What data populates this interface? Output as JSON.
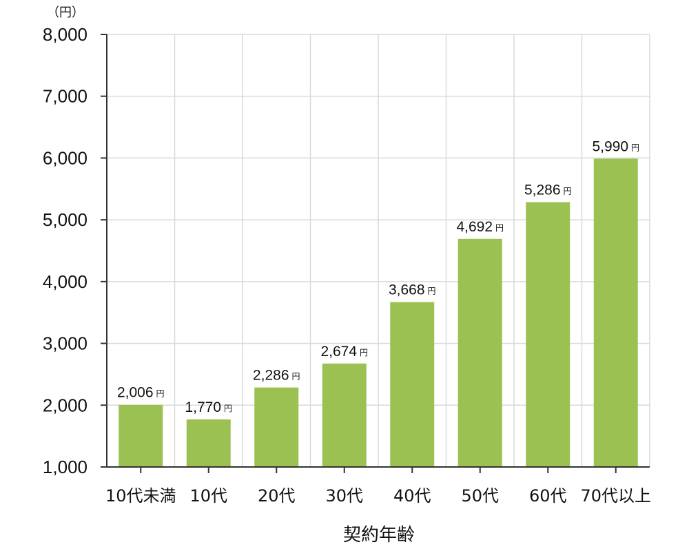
{
  "chart_data": {
    "type": "bar",
    "y_unit_label": "（円）",
    "xlabel": "契約年齢",
    "ylim": [
      1000,
      8000
    ],
    "y_ticks": [
      1000,
      2000,
      3000,
      4000,
      5000,
      6000,
      7000,
      8000
    ],
    "y_tick_labels": [
      "1,000",
      "2,000",
      "3,000",
      "4,000",
      "5,000",
      "6,000",
      "7,000",
      "8,000"
    ],
    "categories": [
      "10代未満",
      "10代",
      "20代",
      "30代",
      "40代",
      "50代",
      "60代",
      "70代以上"
    ],
    "values": [
      2006,
      1770,
      2286,
      2674,
      3668,
      4692,
      5286,
      5990
    ],
    "value_labels": [
      "2,006",
      "1,770",
      "2,286",
      "2,674",
      "3,668",
      "4,692",
      "5,286",
      "5,990"
    ],
    "value_suffix": "円",
    "grid": true,
    "bar_color": "#9bc153",
    "grid_color": "#d9d9d9"
  }
}
